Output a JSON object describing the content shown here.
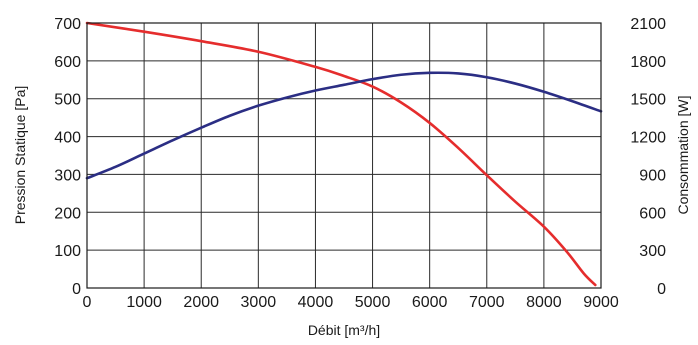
{
  "chart_data": {
    "type": "line",
    "title": "",
    "xlabel": "Débit [m³/h]",
    "ylabel": "Pression Statique [Pa]",
    "y2label": "Consommation [W]",
    "xlim": [
      0,
      9000
    ],
    "ylim": [
      0,
      700
    ],
    "y2lim": [
      0,
      2100
    ],
    "x_ticks": [
      "0",
      "1000",
      "2000",
      "3000",
      "4000",
      "5000",
      "6000",
      "7000",
      "8000",
      "9000"
    ],
    "y_ticks": [
      "0",
      "100",
      "200",
      "300",
      "400",
      "500",
      "600",
      "700"
    ],
    "y2_ticks": [
      "0",
      "300",
      "600",
      "900",
      "1200",
      "1500",
      "1800",
      "2100"
    ],
    "grid": true,
    "series": [
      {
        "axis": "left",
        "color": "#e52d2d",
        "points": [
          [
            0,
            700
          ],
          [
            1000,
            677
          ],
          [
            2000,
            652
          ],
          [
            3000,
            624
          ],
          [
            4000,
            584
          ],
          [
            4500,
            560
          ],
          [
            5000,
            532
          ],
          [
            5500,
            490
          ],
          [
            6000,
            436
          ],
          [
            6500,
            370
          ],
          [
            7000,
            298
          ],
          [
            7500,
            228
          ],
          [
            8000,
            162
          ],
          [
            8400,
            96
          ],
          [
            8700,
            38
          ],
          [
            8900,
            8
          ]
        ]
      },
      {
        "axis": "right",
        "color": "#2b2e84",
        "points": [
          [
            0,
            870
          ],
          [
            500,
            960
          ],
          [
            1000,
            1065
          ],
          [
            1500,
            1170
          ],
          [
            2000,
            1270
          ],
          [
            2500,
            1365
          ],
          [
            3000,
            1445
          ],
          [
            3500,
            1510
          ],
          [
            4000,
            1565
          ],
          [
            4500,
            1610
          ],
          [
            5000,
            1655
          ],
          [
            5500,
            1690
          ],
          [
            6000,
            1705
          ],
          [
            6500,
            1700
          ],
          [
            7000,
            1670
          ],
          [
            7500,
            1620
          ],
          [
            8000,
            1555
          ],
          [
            8500,
            1480
          ],
          [
            9000,
            1400
          ]
        ]
      }
    ]
  }
}
